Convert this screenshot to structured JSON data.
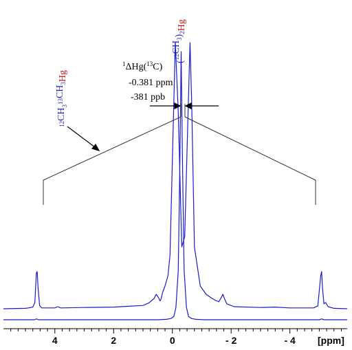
{
  "chart_data": {
    "type": "line",
    "title": "",
    "xlabel": "[ppm]",
    "ylabel": "",
    "x_axis": {
      "reversed": true,
      "range": [
        5.75,
        -5.95
      ],
      "ticks": [
        4,
        2,
        0,
        -2,
        -4
      ],
      "tick_labels": [
        "4",
        "2",
        "0",
        "- 2",
        "- 4"
      ]
    },
    "series": [
      {
        "color": "#1a1acc",
        "points": [
          [
            5.75,
            0.05
          ],
          [
            5.0,
            0.06
          ],
          [
            4.9,
            0.07
          ],
          [
            4.75,
            0.09
          ],
          [
            4.68,
            0.2
          ],
          [
            4.63,
            0.92
          ],
          [
            4.6,
            0.95
          ],
          [
            4.57,
            0.55
          ],
          [
            4.52,
            0.13
          ],
          [
            4.45,
            0.07
          ],
          [
            4.0,
            0.07
          ],
          [
            3.9,
            0.1
          ],
          [
            3.8,
            0.07
          ],
          [
            3.0,
            0.08
          ],
          [
            2.0,
            0.09
          ],
          [
            1.5,
            0.11
          ],
          [
            1.0,
            0.13
          ],
          [
            0.8,
            0.19
          ],
          [
            0.62,
            0.3
          ],
          [
            0.55,
            0.4
          ],
          [
            0.48,
            0.33
          ],
          [
            0.42,
            0.24
          ],
          [
            0.38,
            0.3
          ],
          [
            0.33,
            0.45
          ],
          [
            0.25,
            0.6
          ],
          [
            0.15,
            0.85
          ],
          [
            0.08,
            1.35
          ],
          [
            -0.03,
            4.5
          ],
          [
            -0.1,
            6.5
          ],
          [
            -0.2,
            4.8
          ],
          [
            -0.32,
            1.55
          ],
          [
            -0.42,
            1.8
          ],
          [
            -0.52,
            4.4
          ],
          [
            -0.6,
            6.5
          ],
          [
            -0.66,
            5.0
          ],
          [
            -0.75,
            1.55
          ],
          [
            -0.95,
            0.6
          ],
          [
            -1.15,
            0.4
          ],
          [
            -1.35,
            0.3
          ],
          [
            -1.48,
            0.25
          ],
          [
            -1.58,
            0.22
          ],
          [
            -1.68,
            0.34
          ],
          [
            -1.72,
            0.4
          ],
          [
            -1.77,
            0.3
          ],
          [
            -1.85,
            0.17
          ],
          [
            -2.1,
            0.1
          ],
          [
            -3.0,
            0.08
          ],
          [
            -3.5,
            0.09
          ],
          [
            -4.0,
            0.07
          ],
          [
            -4.8,
            0.07
          ],
          [
            -4.95,
            0.12
          ],
          [
            -5.05,
            0.85
          ],
          [
            -5.08,
            0.95
          ],
          [
            -5.11,
            0.55
          ],
          [
            -5.16,
            0.17
          ],
          [
            -5.22,
            0.2
          ],
          [
            -5.3,
            0.1
          ],
          [
            -5.5,
            0.06
          ],
          [
            -5.95,
            0.05
          ]
        ]
      },
      {
        "color": "#1a1acc",
        "points": [
          [
            5.75,
            0.0
          ],
          [
            4.7,
            0.0
          ],
          [
            4.63,
            0.02
          ],
          [
            4.56,
            0.0
          ],
          [
            0.5,
            0.0
          ],
          [
            0.2,
            0.01
          ],
          [
            0.05,
            0.03
          ],
          [
            -0.05,
            0.08
          ],
          [
            -0.12,
            0.3
          ],
          [
            -0.2,
            1.2
          ],
          [
            -0.26,
            4.0
          ],
          [
            -0.3,
            6.5
          ],
          [
            -0.34,
            4.0
          ],
          [
            -0.4,
            1.2
          ],
          [
            -0.48,
            0.3
          ],
          [
            -0.55,
            0.08
          ],
          [
            -0.65,
            0.03
          ],
          [
            -0.8,
            0.01
          ],
          [
            -1.1,
            0.0
          ],
          [
            -5.0,
            0.0
          ],
          [
            -5.08,
            0.02
          ],
          [
            -5.16,
            0.0
          ],
          [
            -5.95,
            0.0
          ]
        ]
      }
    ],
    "annotations": {
      "left_label": {
        "parts": [
          {
            "text": "12",
            "sup": true,
            "color": "#1a1acc"
          },
          {
            "text": "CH",
            "color": "#1a1acc"
          },
          {
            "text": "3",
            "sub": true,
            "color": "#1a1acc"
          },
          {
            "text": "13",
            "sup": true,
            "color": "#1a1acc"
          },
          {
            "text": "CH",
            "color": "#1a1acc"
          },
          {
            "text": "3",
            "sub": true,
            "color": "#1a1acc"
          },
          {
            "text": "Hg",
            "color": "#cc1111"
          }
        ]
      },
      "top_label": {
        "parts": [
          {
            "text": "(",
            "color": "#1a1acc"
          },
          {
            "text": "12",
            "sup": true,
            "color": "#1a1acc"
          },
          {
            "text": "CH",
            "color": "#1a1acc"
          },
          {
            "text": "3",
            "sub": true,
            "color": "#1a1acc"
          },
          {
            "text": ")",
            "color": "#1a1acc"
          },
          {
            "text": "2",
            "sub": true,
            "color": "#1a1acc"
          },
          {
            "text": "Hg",
            "color": "#cc1111"
          }
        ]
      },
      "isotope_shift": {
        "sup": "1",
        "line1": "ΔHg(",
        "sup2": "13",
        "line1_end": "C)",
        "line2": "-0.381 ppm",
        "line3": "-381 ppb"
      }
    }
  }
}
